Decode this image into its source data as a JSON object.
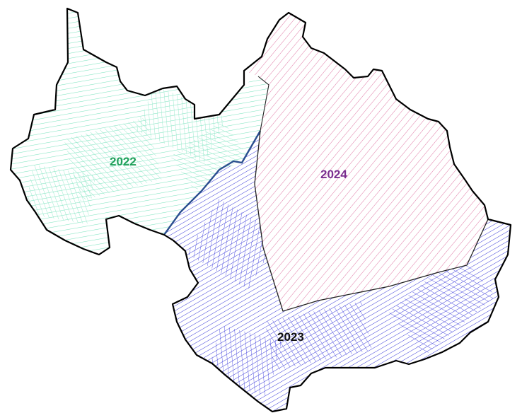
{
  "map": {
    "regions": [
      {
        "id": "west",
        "label": "2022",
        "color": "#2fbf7a",
        "hatch": "#7fe3c0",
        "label_color": "#1fa05a"
      },
      {
        "id": "south",
        "label": "2023",
        "color": "#2323c8",
        "hatch": "#3a3ad8",
        "label_color": "#111111"
      },
      {
        "id": "east",
        "label": "2024",
        "color": "#d23a78",
        "hatch": "#e27aa8",
        "label_color": "#7a2f8f"
      }
    ],
    "outline_color": "#000000",
    "divider_color": "#2b4f8f"
  }
}
